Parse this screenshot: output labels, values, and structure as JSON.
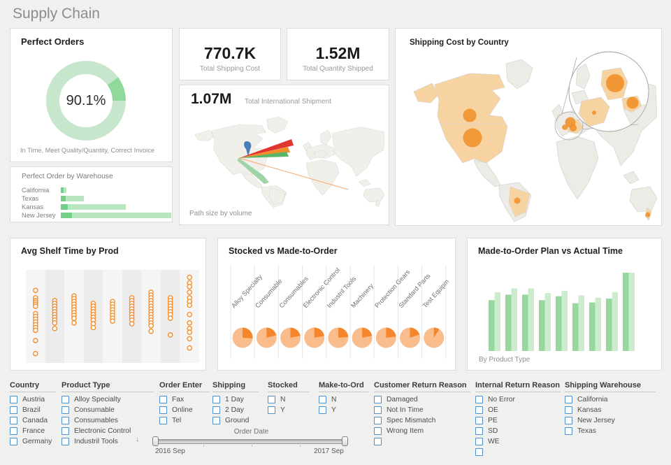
{
  "page": {
    "title": "Supply Chain"
  },
  "cards": {
    "perfect_orders": {
      "title": "Perfect Orders",
      "value": "90.1%",
      "caption": "In Time, Meet Quality/Quantity, Correct Invoice"
    },
    "warehouse": {
      "title": "Perfect Order by Warehouse"
    },
    "kpi_shipping_cost": {
      "value": "770.7K",
      "label": "Total Shipping Cost"
    },
    "kpi_quantity": {
      "value": "1.52M",
      "label": "Total Quantity Shipped"
    },
    "international": {
      "value": "1.07M",
      "label": "Total  International Shipment",
      "footnote": "Path size by volume"
    },
    "shipping_map": {
      "title": "Shipping Cost by Country"
    },
    "shelf": {
      "title": "Avg Shelf Time by Prod"
    },
    "stocked": {
      "title": "Stocked vs Made-to-Order"
    },
    "plan_actual": {
      "title": "Made-to-Order Plan vs Actual Time",
      "footnote": "By Product Type"
    }
  },
  "colors": {
    "green_light": "#c7e7cd",
    "green_dark": "#8ed99b",
    "bar_green_dark": "#97d89f",
    "bar_green_light": "#cdeccd",
    "orange": "#f0912d",
    "pie_light": "#f9bd8d",
    "pie_dark": "#f5862b",
    "land_gray": "#edebe5",
    "land_orange": "#f8d3a2",
    "land_stroke": "#d7d4cd",
    "flow_red": "#e03531",
    "flow_blue": "#4a7ebb",
    "flow_green": "#59b567",
    "flow_green_light": "#9fd4a8",
    "flow_orange": "#f28e2b",
    "flow_orange_thin": "#f5a86b"
  },
  "chart_data": [
    {
      "id": "perfect_orders",
      "type": "donut",
      "title": "Perfect Orders",
      "value_pct": 90.1,
      "display": "90.1%",
      "caption": "In Time, Meet Quality/Quantity, Correct Invoice",
      "segment_start_deg": 54,
      "segment_end_deg": 90
    },
    {
      "id": "perfect_order_by_warehouse",
      "type": "bar",
      "title": "Perfect Order by Warehouse",
      "categories": [
        "California",
        "Texas",
        "Kansas",
        "New Jersey"
      ],
      "series": [
        {
          "name": "perfect",
          "values": [
            0.026,
            0.046,
            0.066,
            0.099
          ]
        },
        {
          "name": "total",
          "values": [
            0.053,
            0.21,
            0.59,
            1.0
          ]
        }
      ]
    },
    {
      "id": "total_shipping_cost",
      "type": "kpi",
      "value": "770.7K",
      "label": "Total Shipping Cost"
    },
    {
      "id": "total_quantity_shipped",
      "type": "kpi",
      "value": "1.52M",
      "label": "Total Quantity Shipped"
    },
    {
      "id": "international_shipment",
      "type": "flow_map",
      "value": "1.07M",
      "label": "Total International Shipment",
      "note": "Path size by volume",
      "flows": [
        {
          "to": "Europe",
          "color": "red",
          "relative_volume": 1.0
        },
        {
          "to": "Europe",
          "color": "orange",
          "relative_volume": 0.55
        },
        {
          "to": "Europe",
          "color": "green",
          "relative_volume": 0.4
        },
        {
          "to": "North America",
          "color": "blue",
          "relative_volume": 0.6
        },
        {
          "to": "South America",
          "color": "green",
          "relative_volume": 0.5
        },
        {
          "to": "Oceania",
          "color": "orange",
          "relative_volume": 0.08
        }
      ]
    },
    {
      "id": "shipping_cost_by_country",
      "type": "bubble_map",
      "title": "Shipping Cost by Country",
      "bubbles": [
        {
          "country": "United States",
          "size": 13.5
        },
        {
          "country": "Canada",
          "size": 9.5
        },
        {
          "country": "Brazil",
          "size": 4.5
        },
        {
          "country": "Norway",
          "size": 6.5
        },
        {
          "country": "Germany",
          "size": 13
        },
        {
          "country": "France",
          "size": 3
        },
        {
          "country": "Austria",
          "size": 8.5
        },
        {
          "country": "New Zealand",
          "size": 3.5
        }
      ]
    },
    {
      "id": "avg_shelf_time",
      "type": "strip",
      "title": "Avg Shelf Time by Prod",
      "points": [
        [
          0.22,
          0.3,
          0.33,
          0.35,
          0.37,
          0.39,
          0.47,
          0.5,
          0.53,
          0.56,
          0.59,
          0.62,
          0.65,
          0.76,
          0.9
        ],
        [
          0.33,
          0.36,
          0.39,
          0.42,
          0.45,
          0.48,
          0.51,
          0.54,
          0.57,
          0.63
        ],
        [
          0.28,
          0.31,
          0.34,
          0.37,
          0.4,
          0.43,
          0.46,
          0.49,
          0.52,
          0.57
        ],
        [
          0.36,
          0.39,
          0.42,
          0.45,
          0.48,
          0.51,
          0.54,
          0.58,
          0.62
        ],
        [
          0.34,
          0.37,
          0.4,
          0.43,
          0.46,
          0.49,
          0.52,
          0.55
        ],
        [
          0.3,
          0.33,
          0.36,
          0.39,
          0.42,
          0.45,
          0.48,
          0.51,
          0.54,
          0.58
        ],
        [
          0.24,
          0.27,
          0.3,
          0.33,
          0.36,
          0.39,
          0.42,
          0.45,
          0.48,
          0.51,
          0.54,
          0.57,
          0.6,
          0.66
        ],
        [
          0.3,
          0.33,
          0.36,
          0.39,
          0.42,
          0.45,
          0.48,
          0.52,
          0.7
        ],
        [
          0.08,
          0.14,
          0.18,
          0.24,
          0.3,
          0.34,
          0.38,
          0.48,
          0.57,
          0.63,
          0.67,
          0.74,
          0.84
        ]
      ]
    },
    {
      "id": "stocked_vs_made_to_order",
      "type": "pie_grid",
      "title": "Stocked vs Made-to-Order",
      "categories": [
        "Alloy Specialty",
        "Consumable",
        "Consumables",
        "Electronic Control",
        "Industril Tools",
        "Machinery",
        "Protection Gears",
        "Standard Parts",
        "Test Equipm"
      ],
      "made_to_order_fraction": [
        0.26,
        0.21,
        0.22,
        0.22,
        0.24,
        0.22,
        0.23,
        0.2,
        0.09
      ]
    },
    {
      "id": "plan_vs_actual",
      "type": "grouped_bar",
      "title": "Made-to-Order Plan vs Actual Time",
      "note": "By Product Type",
      "categories": [
        "Alloy Specialty",
        "Consumable",
        "Consumables",
        "Electronic Control",
        "Industril Tools",
        "Machinery",
        "Protection Gears",
        "Standard Parts",
        "Test Equipm"
      ],
      "series": [
        {
          "name": "Plan",
          "values": [
            0.65,
            0.72,
            0.72,
            0.65,
            0.7,
            0.61,
            0.62,
            0.67,
            1.0
          ]
        },
        {
          "name": "Actual",
          "values": [
            0.75,
            0.8,
            0.8,
            0.74,
            0.77,
            0.71,
            0.68,
            0.75,
            1.0
          ]
        }
      ]
    }
  ],
  "filters": [
    {
      "title": "Country",
      "options": [
        "Austria",
        "Brazil",
        "Canada",
        "France",
        "Germany"
      ]
    },
    {
      "title": "Product Type",
      "options": [
        "Alloy Specialty",
        "Consumable",
        "Consumables",
        "Electronic Control",
        "Industril Tools"
      ]
    },
    {
      "title": "Order Enter",
      "options": [
        "Fax",
        "Online",
        "Tel"
      ]
    },
    {
      "title": "Shipping",
      "options": [
        "1 Day",
        "2 Day",
        "Ground"
      ]
    },
    {
      "title": "Stocked",
      "options": [
        "N",
        "Y"
      ]
    },
    {
      "title": "Make-to-Ord",
      "options": [
        "N",
        "Y"
      ]
    },
    {
      "title": "Customer Return Reason",
      "options": [
        "Damaged",
        "Not In Time",
        "Spec Mismatch",
        "Wrong Item",
        ""
      ]
    },
    {
      "title": "Internal Return Reason",
      "options": [
        "No Error",
        "OE",
        "PE",
        "SD",
        "WE",
        ""
      ]
    },
    {
      "title": "Shipping Warehouse",
      "options": [
        "California",
        "Kansas",
        "New Jersey",
        "Texas"
      ]
    }
  ],
  "date_slider": {
    "title": "Order Date",
    "start": "2016 Sep",
    "end": "2017 Sep"
  }
}
